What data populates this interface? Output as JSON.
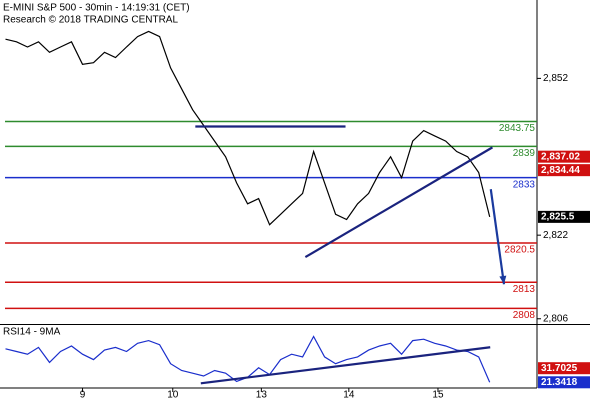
{
  "chart_data": [
    {
      "type": "line",
      "title": "E-MINI S&P 500 - 30min - 14:19:31 (CET)",
      "subtitle": "Research © 2018 TRADING CENTRAL",
      "x": [
        0,
        2,
        4,
        6,
        8,
        10,
        12,
        14,
        16,
        18,
        20,
        22,
        24,
        26,
        28,
        30,
        32,
        34,
        36,
        38,
        40,
        42,
        44,
        46,
        48,
        50,
        52,
        54,
        56,
        58,
        60,
        62,
        64,
        66,
        68,
        70,
        72,
        74,
        76,
        78,
        80,
        82,
        84,
        86,
        88
      ],
      "series": [
        {
          "color": "#000000",
          "values": [
            2859.5,
            2859,
            2858,
            2859,
            2857,
            2858,
            2859,
            2854.7,
            2855,
            2857,
            2856,
            2858,
            2860,
            2861,
            2860,
            2854,
            2850,
            2846,
            2843,
            2840,
            2837,
            2832,
            2828,
            2829,
            2824,
            2826,
            2828,
            2830,
            2838,
            2832,
            2826,
            2825,
            2828,
            2830,
            2834,
            2837,
            2833,
            2840,
            2842,
            2841,
            2840,
            2838,
            2837,
            2834,
            2825.5
          ]
        }
      ],
      "xlim": [
        -1,
        96.6
      ],
      "ylim": [
        2805,
        2867
      ],
      "yticks": [
        {
          "value": 2852,
          "label": "2,852"
        },
        {
          "value": 2822,
          "label": "2,822"
        },
        {
          "value": 2806,
          "label": "2,806"
        }
      ],
      "levels": [
        {
          "value": 2843.75,
          "color": "#2e8b2e"
        },
        {
          "value": 2839,
          "color": "#2e8b2e"
        },
        {
          "value": 2833,
          "color": "#1a2ecc"
        },
        {
          "value": 2820.5,
          "color": "#d01010"
        },
        {
          "value": 2813,
          "color": "#d01010"
        },
        {
          "value": 2808,
          "color": "#d01010"
        }
      ],
      "markers": [
        {
          "value": 2837.02,
          "label": "2,837.02",
          "color": "#d01010"
        },
        {
          "value": 2834.44,
          "label": "2,834.44",
          "color": "#d01010"
        },
        {
          "value": 2825.5,
          "label": "2,825.5",
          "color": "#000000"
        }
      ],
      "trendlines": [
        {
          "x": [
            54.5,
            88.5
          ],
          "y": [
            2817.8,
            2838.8
          ],
          "color": "#1a237e"
        },
        {
          "x": [
            34.5,
            61.8
          ],
          "y": [
            2842.8,
            2842.8
          ],
          "color": "#1a237e"
        },
        {
          "x": [
            88.2,
            90.6
          ],
          "y": [
            2830.8,
            2812.6
          ],
          "color": "#1a3a9e",
          "arrow": true
        }
      ]
    },
    {
      "type": "line",
      "title": "RSI14 - 9MA",
      "x": [
        0,
        2,
        4,
        6,
        8,
        10,
        12,
        14,
        16,
        18,
        20,
        22,
        24,
        26,
        28,
        30,
        32,
        34,
        36,
        38,
        40,
        42,
        44,
        46,
        48,
        50,
        52,
        54,
        56,
        58,
        60,
        62,
        64,
        66,
        68,
        70,
        72,
        74,
        76,
        78,
        80,
        82,
        84,
        86,
        88
      ],
      "series": [
        {
          "color": "#1a2ecc",
          "values": [
            46,
            44,
            42,
            47,
            36,
            44,
            48,
            42,
            38,
            45,
            47,
            44,
            50,
            52,
            49,
            35,
            30,
            28,
            26,
            30,
            28,
            22,
            25,
            32,
            27,
            38,
            42,
            40,
            55,
            40,
            35,
            38,
            40,
            45,
            48,
            50,
            42,
            52,
            53,
            50,
            48,
            45,
            44,
            40,
            21.34
          ]
        }
      ],
      "xlim": [
        -1,
        96.6
      ],
      "ylim": [
        12,
        62
      ],
      "xticks": [
        {
          "value": 14,
          "label": "9"
        },
        {
          "value": 30.4,
          "label": "10"
        },
        {
          "value": 46.5,
          "label": "13"
        },
        {
          "value": 62.4,
          "label": "14"
        },
        {
          "value": 78.6,
          "label": "15"
        }
      ],
      "markers": [
        {
          "value": 31.7025,
          "label": "31.7025",
          "color": "#d01010"
        },
        {
          "value": 21.3418,
          "label": "21.3418",
          "color": "#1a2ecc"
        }
      ],
      "trendlines": [
        {
          "x": [
            35.5,
            88.1
          ],
          "y": [
            20.6,
            47.1
          ],
          "color": "#1a237e"
        }
      ]
    }
  ]
}
